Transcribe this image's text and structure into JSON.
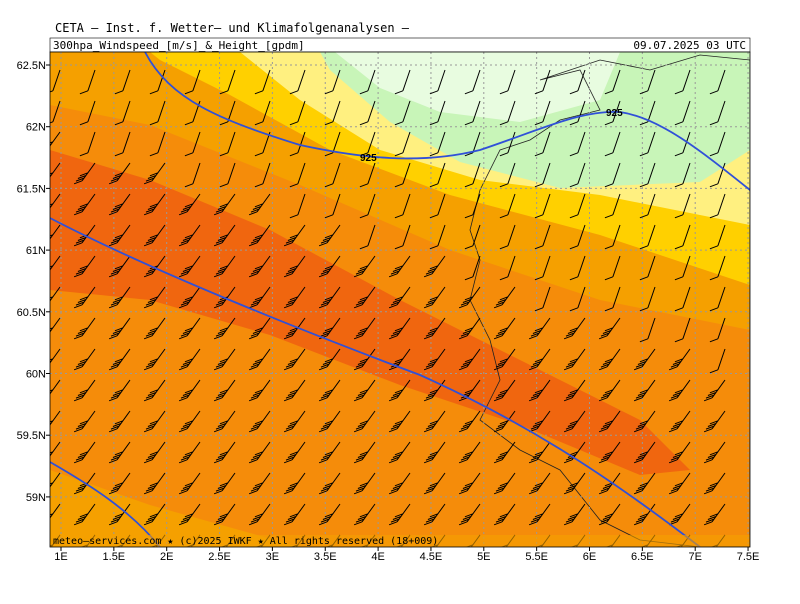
{
  "header": {
    "title": "CETA — Inst. f. Wetter— und Klimafolgenanalysen —",
    "subtitle": "300hpa_Windspeed_[m/s]_&_Height_[gpdm]",
    "datetime": "09.07.2025 03 UTC"
  },
  "map": {
    "lat_labels": [
      "62.5N",
      "62N",
      "61.5N",
      "61N",
      "60.5N",
      "60N",
      "59.5N",
      "59N"
    ],
    "lon_labels": [
      "1E",
      "1.5E",
      "2E",
      "2.5E",
      "3E",
      "3.5E",
      "4E",
      "4.5E",
      "5E",
      "5.5E",
      "6E",
      "6.5E",
      "7E",
      "7.5E"
    ],
    "contour_labels": [
      "925",
      "925"
    ]
  },
  "footer": "meteo—services.com ★ (c)2025 IWKF ★ All rights reserved (18+009)"
}
